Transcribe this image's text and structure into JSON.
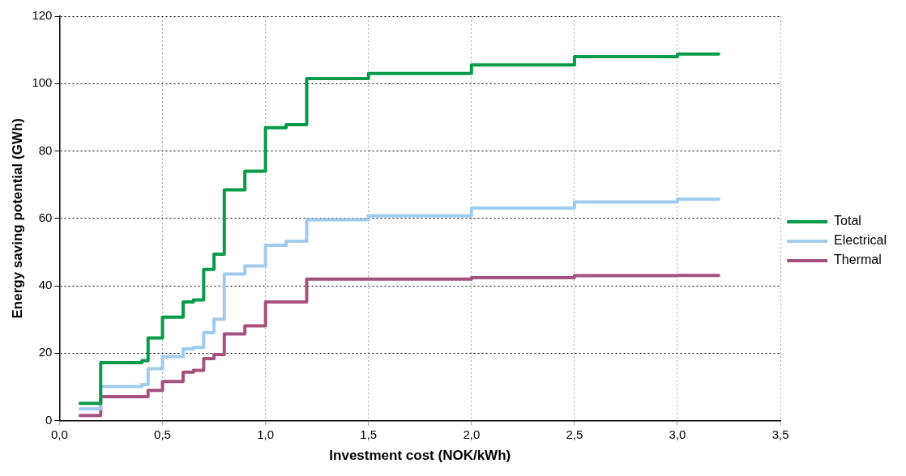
{
  "chart_data": {
    "type": "step",
    "xlabel": "Investment cost (NOK/kWh)",
    "ylabel": "Energy saving potential (GWh)",
    "x": [
      0.1,
      0.2,
      0.4,
      0.43,
      0.5,
      0.6,
      0.65,
      0.7,
      0.75,
      0.8,
      0.9,
      1.0,
      1.1,
      1.2,
      1.5,
      2.0,
      2.5,
      3.0,
      3.2
    ],
    "series": [
      {
        "name": "Total",
        "color": "#069a49",
        "values": [
          5.1,
          17.2,
          17.8,
          24.5,
          30.7,
          35.2,
          35.8,
          44.9,
          49.4,
          68.5,
          74.0,
          86.9,
          87.8,
          101.5,
          103.0,
          105.5,
          108.0,
          108.8,
          108.8
        ]
      },
      {
        "name": "Electrical",
        "color": "#9fcbee",
        "values": [
          3.5,
          10.1,
          10.7,
          15.4,
          19.0,
          21.3,
          21.7,
          26.1,
          30.1,
          43.5,
          45.9,
          52.0,
          53.2,
          59.6,
          60.8,
          63.1,
          64.9,
          65.7,
          65.7
        ]
      },
      {
        "name": "Thermal",
        "color": "#a6527f",
        "values": [
          1.5,
          7.1,
          7.1,
          9.0,
          11.6,
          14.4,
          14.9,
          18.4,
          19.6,
          25.7,
          28.1,
          35.2,
          35.2,
          42.0,
          42.0,
          42.4,
          43.0,
          43.1,
          43.1
        ]
      }
    ],
    "xlim": [
      0,
      3.5
    ],
    "xticks": [
      {
        "value": 0,
        "label": "0,0"
      },
      {
        "value": 0.5,
        "label": "0,5"
      },
      {
        "value": 1,
        "label": "1,0"
      },
      {
        "value": 1.5,
        "label": "1,5"
      },
      {
        "value": 2,
        "label": "2,0"
      },
      {
        "value": 2.5,
        "label": "2,5"
      },
      {
        "value": 3,
        "label": "3,0"
      },
      {
        "value": 3.5,
        "label": "3,5"
      }
    ],
    "ylim": [
      0,
      120
    ],
    "yticks": [
      0,
      20,
      40,
      60,
      80,
      100,
      120
    ],
    "grid": true,
    "legend": "right",
    "line_style": "solid",
    "marker": "none"
  }
}
